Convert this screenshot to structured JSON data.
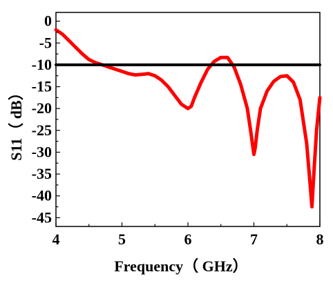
{
  "chart_data": {
    "type": "line",
    "xlabel": "Frequency（ GHz）",
    "ylabel": "S11（ dB）",
    "xlim": [
      4,
      8
    ],
    "ylim": [
      -47,
      2
    ],
    "x_ticks": [
      4,
      5,
      6,
      7,
      8
    ],
    "x_tick_labels": [
      "4",
      "5",
      "6",
      "7",
      "8"
    ],
    "y_ticks": [
      0,
      -5,
      -10,
      -15,
      -20,
      -25,
      -30,
      -35,
      -40,
      -45
    ],
    "y_tick_labels": [
      "0",
      "-5",
      "-10",
      "-15",
      "-20",
      "-25",
      "-30",
      "-35",
      "-40",
      "-45"
    ],
    "grid": false,
    "series": [
      {
        "color": "#ff0000",
        "x": [
          4.0,
          4.1,
          4.2,
          4.3,
          4.4,
          4.5,
          4.6,
          4.7,
          4.8,
          4.9,
          5.0,
          5.1,
          5.2,
          5.3,
          5.4,
          5.5,
          5.6,
          5.7,
          5.8,
          5.9,
          6.0,
          6.05,
          6.1,
          6.2,
          6.3,
          6.4,
          6.5,
          6.6,
          6.7,
          6.8,
          6.9,
          6.95,
          7.0,
          7.02,
          7.05,
          7.1,
          7.2,
          7.3,
          7.4,
          7.5,
          7.6,
          7.7,
          7.8,
          7.85,
          7.88,
          7.9,
          7.95,
          8.0
        ],
        "y": [
          -2.0,
          -3.0,
          -4.5,
          -6.0,
          -7.5,
          -8.8,
          -9.5,
          -10.0,
          -10.5,
          -11.0,
          -11.5,
          -12.0,
          -12.3,
          -12.2,
          -12.0,
          -12.5,
          -13.5,
          -15.0,
          -17.0,
          -19.0,
          -20.0,
          -19.5,
          -17.5,
          -14.0,
          -11.0,
          -9.2,
          -8.3,
          -8.3,
          -10.5,
          -14.5,
          -20.0,
          -25.0,
          -30.5,
          -29.0,
          -25.0,
          -20.0,
          -16.0,
          -13.8,
          -12.7,
          -12.5,
          -14.0,
          -18.0,
          -28.0,
          -37.0,
          -42.5,
          -37.0,
          -25.0,
          -17.5
        ]
      },
      {
        "color": "#000000",
        "x": [
          4,
          8
        ],
        "y": [
          -10,
          -10
        ]
      }
    ]
  }
}
